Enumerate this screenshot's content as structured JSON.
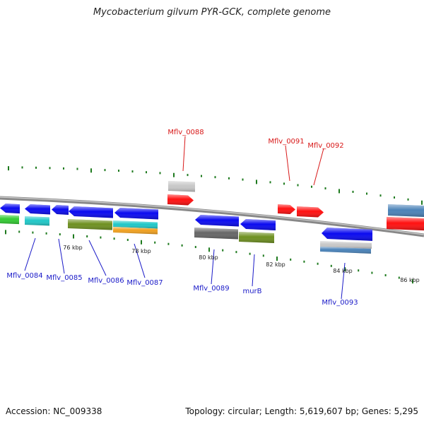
{
  "title": "Mycobacterium gilvum PYR-GCK, complete genome",
  "footer": {
    "accession": "Accession: NC_009338",
    "summary": "Topology: circular; Length: 5,619,607 bp; Genes: 5,295"
  },
  "colors": {
    "label_blue": "#1a1ac8",
    "label_red": "#d81818",
    "tick_green": "#1e7a1e",
    "backbone": "#888888",
    "gene_blue": "#0a0af0",
    "gene_red": "#ff1010",
    "gene_green": "#33cc33",
    "gene_cyan": "#20c8c8",
    "gene_olive": "#6e9020",
    "gene_orange": "#f0a020",
    "gene_gray": "#666666",
    "gene_lightgray": "#c8c8c8",
    "gene_steel": "#4a82b8"
  },
  "scale_labels": [
    "76 kbp",
    "78 kbp",
    "80 kbp",
    "82 kbp",
    "84 kbp",
    "86 kbp"
  ],
  "gene_labels_top": [
    "Mflv_0088",
    "Mflv_0091",
    "Mflv_0092"
  ],
  "gene_labels_bottom": [
    "Mflv_0084",
    "Mflv_0085",
    "Mflv_0086",
    "Mflv_0087",
    "Mflv_0089",
    "murB",
    "Mflv_0093"
  ]
}
